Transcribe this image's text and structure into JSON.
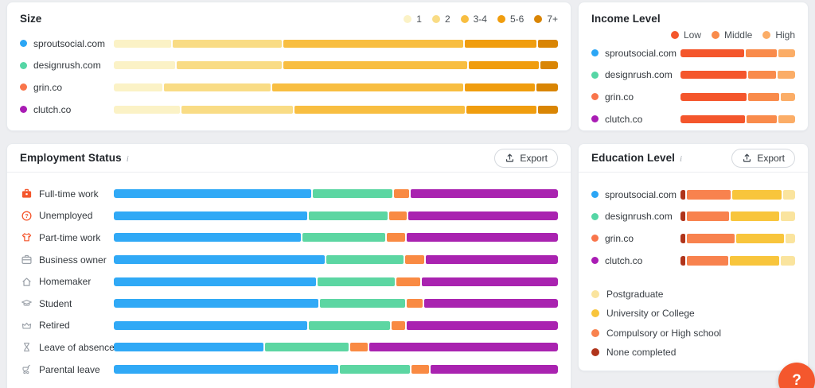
{
  "ui": {
    "export_label": "Export",
    "info_icon": "i",
    "help_label": "?"
  },
  "chart_data": [
    {
      "id": "size",
      "type": "bar",
      "stacked": true,
      "orientation": "horizontal",
      "unit": "percent",
      "title": "Size",
      "legend_position": "top-right",
      "legend": [
        "1",
        "2",
        "3-4",
        "5-6",
        "7+"
      ],
      "legend_colors": [
        "#FBF2C6",
        "#F9DC85",
        "#F8BE41",
        "#F09D0E",
        "#D98504"
      ],
      "categories": [
        "sproutsocial.com",
        "designrush.com",
        "grin.co",
        "clutch.co"
      ],
      "category_colors": [
        "#2BA6F5",
        "#55D6A5",
        "#F9754B",
        "#A91CB4"
      ],
      "series": [
        {
          "name": "1",
          "color": "#FBF2C6",
          "values": [
            13,
            14,
            11,
            15
          ]
        },
        {
          "name": "2",
          "color": "#F9DC85",
          "values": [
            25,
            24,
            24.5,
            25.5
          ]
        },
        {
          "name": "3-4",
          "color": "#F8BE41",
          "values": [
            41,
            42,
            43.5,
            39
          ]
        },
        {
          "name": "5-6",
          "color": "#F09D0E",
          "values": [
            16.5,
            16,
            16,
            16
          ]
        },
        {
          "name": "7+",
          "color": "#D98504",
          "values": [
            4.5,
            4,
            5,
            4.5
          ]
        }
      ]
    },
    {
      "id": "income-level",
      "type": "bar",
      "stacked": true,
      "orientation": "horizontal",
      "unit": "percent",
      "title": "Income Level",
      "legend_position": "top-right",
      "legend": [
        "Low",
        "Middle",
        "High"
      ],
      "legend_colors": [
        "#F4562C",
        "#F98B4B",
        "#FBAD67"
      ],
      "categories": [
        "sproutsocial.com",
        "designrush.com",
        "grin.co",
        "clutch.co"
      ],
      "category_colors": [
        "#2BA6F5",
        "#55D6A5",
        "#F9754B",
        "#A91CB4"
      ],
      "series": [
        {
          "name": "Low",
          "color": "#F4562C",
          "values": [
            57,
            59,
            59,
            58
          ]
        },
        {
          "name": "Middle",
          "color": "#F98B4B",
          "values": [
            28,
            25,
            28,
            27
          ]
        },
        {
          "name": "High",
          "color": "#FBAD67",
          "values": [
            15,
            16,
            13,
            15
          ]
        }
      ]
    },
    {
      "id": "employment-status",
      "type": "bar",
      "stacked": true,
      "orientation": "horizontal",
      "unit": "percent",
      "title": "Employment Status",
      "categories": [
        "Full-time work",
        "Unemployed",
        "Part-time work",
        "Business owner",
        "Homemaker",
        "Student",
        "Retired",
        "Leave of absence",
        "Parental leave"
      ],
      "category_icons": [
        "briefcase-filled",
        "question-circle",
        "tshirt",
        "briefcase-outline",
        "home",
        "graduation-cap",
        "crown",
        "hourglass",
        "stroller"
      ],
      "category_icon_colors": [
        "#F4562C",
        "#F4562C",
        "#F4562C",
        "#9AA0A8",
        "#9AA0A8",
        "#9AA0A8",
        "#9AA0A8",
        "#9AA0A8",
        "#9AA0A8"
      ],
      "series": [
        {
          "name": "series-1",
          "color": "#30A9F6",
          "values": [
            45,
            44,
            42.5,
            48,
            46,
            46.5,
            44,
            34,
            51
          ]
        },
        {
          "name": "series-2",
          "color": "#5CD6A2",
          "values": [
            18,
            18,
            19,
            17.5,
            17.5,
            19.5,
            18.5,
            19,
            16
          ]
        },
        {
          "name": "series-3",
          "color": "#F98A43",
          "values": [
            3.5,
            4,
            4,
            4.5,
            5.5,
            3.5,
            3,
            4,
            4
          ]
        },
        {
          "name": "series-4",
          "color": "#A923B0",
          "values": [
            33.5,
            34,
            34.5,
            30,
            31,
            30.5,
            34.5,
            43,
            29
          ]
        }
      ]
    },
    {
      "id": "education-level",
      "type": "bar",
      "stacked": true,
      "orientation": "horizontal",
      "unit": "percent",
      "title": "Education Level",
      "legend_position": "bottom",
      "legend": [
        "Postgraduate",
        "University or College",
        "Compulsory or High school",
        "None completed"
      ],
      "legend_colors": [
        "#FAE49E",
        "#F8C53C",
        "#F8824E",
        "#B0341B"
      ],
      "categories": [
        "sproutsocial.com",
        "designrush.com",
        "grin.co",
        "clutch.co"
      ],
      "category_colors": [
        "#2BA6F5",
        "#55D6A5",
        "#F9754B",
        "#A91CB4"
      ],
      "series": [
        {
          "name": "None completed",
          "color": "#B0341B",
          "values": [
            4,
            4,
            4,
            4
          ]
        },
        {
          "name": "Compulsory or High school",
          "color": "#F8824E",
          "values": [
            40,
            39,
            44,
            38
          ]
        },
        {
          "name": "University or College",
          "color": "#F8C53C",
          "values": [
            45,
            44,
            43,
            45
          ]
        },
        {
          "name": "Postgraduate",
          "color": "#FAE49E",
          "values": [
            11,
            13,
            9,
            13
          ]
        }
      ]
    }
  ]
}
